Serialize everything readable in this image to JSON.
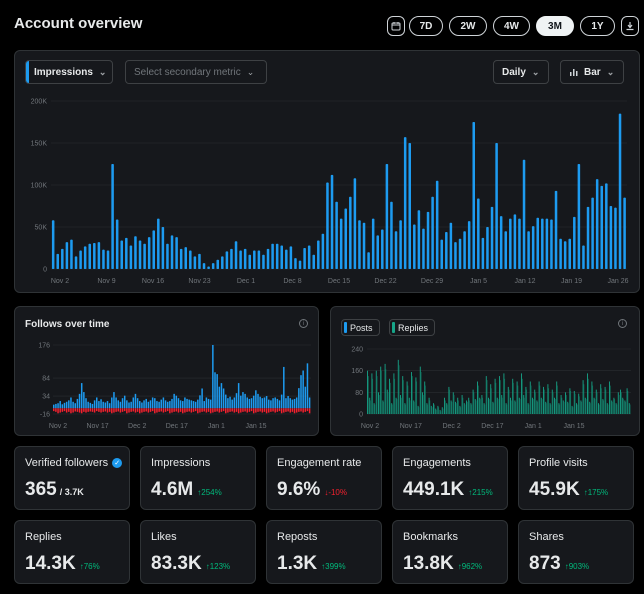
{
  "header": {
    "title": "Account overview",
    "ranges": [
      "7D",
      "2W",
      "4W",
      "3M",
      "1Y"
    ],
    "active_range": "3M"
  },
  "main_chart": {
    "primary_metric": "Impressions",
    "secondary_placeholder": "Select secondary metric",
    "interval": "Daily",
    "chart_type": "Bar",
    "icons": [
      "calendar-icon",
      "download-icon",
      "bar-chart-icon",
      "chevron-down-icon"
    ]
  },
  "followers_chart": {
    "title": "Follows over time"
  },
  "posts_chart": {
    "legend": [
      "Posts",
      "Replies"
    ]
  },
  "colors": {
    "blue": "#1d9bf0",
    "green": "#00ba7c",
    "red": "#f4212e",
    "teal": "#17a589"
  },
  "cards": [
    {
      "label": "Verified followers",
      "value": "365",
      "sub": "/ 3.7K",
      "change": "",
      "dir": "",
      "verified": true
    },
    {
      "label": "Impressions",
      "value": "4.6M",
      "change": "↑254%",
      "dir": "up"
    },
    {
      "label": "Engagement rate",
      "value": "9.6%",
      "change": "↓-10%",
      "dir": "down"
    },
    {
      "label": "Engagements",
      "value": "449.1K",
      "change": "↑215%",
      "dir": "up"
    },
    {
      "label": "Profile visits",
      "value": "45.9K",
      "change": "↑175%",
      "dir": "up"
    },
    {
      "label": "Replies",
      "value": "14.3K",
      "change": "↑76%",
      "dir": "up"
    },
    {
      "label": "Likes",
      "value": "83.3K",
      "change": "↑123%",
      "dir": "up"
    },
    {
      "label": "Reposts",
      "value": "1.3K",
      "change": "↑399%",
      "dir": "up"
    },
    {
      "label": "Bookmarks",
      "value": "13.8K",
      "change": "↑962%",
      "dir": "up"
    },
    {
      "label": "Shares",
      "value": "873",
      "change": "↑903%",
      "dir": "up"
    }
  ],
  "chart_data": [
    {
      "type": "bar",
      "title": "",
      "series": [
        {
          "name": "Impressions",
          "values": [
            58,
            18,
            24,
            32,
            35,
            15,
            22,
            27,
            30,
            31,
            32,
            23,
            22,
            125,
            59,
            34,
            37,
            28,
            39,
            34,
            30,
            38,
            46,
            60,
            50,
            30,
            40,
            38,
            24,
            26,
            22,
            15,
            18,
            7,
            3,
            7,
            11,
            15,
            21,
            24,
            33,
            22,
            24,
            17,
            22,
            22,
            17,
            24,
            30,
            30,
            28,
            23,
            27,
            13,
            10,
            25,
            28,
            17,
            34,
            42,
            103,
            112,
            80,
            60,
            72,
            86,
            108,
            58,
            55,
            20,
            60,
            40,
            47,
            125,
            80,
            45,
            58,
            157,
            150,
            53,
            70,
            48,
            68,
            86,
            105,
            35,
            44,
            55,
            32,
            36,
            45,
            57,
            175,
            84,
            37,
            50,
            74,
            150,
            63,
            45,
            60,
            65,
            60,
            130,
            45,
            51,
            61,
            60,
            60,
            59,
            93,
            36,
            33,
            36,
            62,
            125,
            28,
            74,
            85,
            107,
            99,
            102,
            75,
            73,
            185,
            85
          ]
        }
      ],
      "x_tick_labels": [
        "Nov 2",
        "Nov 9",
        "Nov 16",
        "Nov 23",
        "Dec 1",
        "Dec 8",
        "Dec 15",
        "Dec 22",
        "Dec 29",
        "Jan 5",
        "Jan 12",
        "Jan 19",
        "Jan 26"
      ],
      "y_tick_labels": [
        "0",
        "50K",
        "100K",
        "150K",
        "200K"
      ],
      "ylim": [
        0,
        200
      ],
      "grid": true
    },
    {
      "type": "bar",
      "title": "Follows over time",
      "series": [
        {
          "name": "follows",
          "values": [
            10,
            12,
            14,
            20,
            11,
            15,
            18,
            22,
            30,
            18,
            14,
            26,
            40,
            70,
            45,
            28,
            18,
            15,
            12,
            22,
            30,
            20,
            25,
            18,
            16,
            20,
            14,
            30,
            45,
            30,
            22,
            18,
            28,
            35,
            22,
            16,
            18,
            30,
            40,
            28,
            20,
            16,
            22,
            26,
            18,
            22,
            30,
            28,
            20,
            18,
            24,
            30,
            22,
            18,
            20,
            26,
            40,
            35,
            28,
            22,
            20,
            30,
            26,
            24,
            22,
            20,
            18,
            24,
            36,
            55,
            20,
            30,
            26,
            24,
            176,
            100,
            95,
            60,
            70,
            55,
            38,
            28,
            32,
            24,
            30,
            42,
            70,
            35,
            45,
            40,
            30,
            26,
            28,
            35,
            50,
            40,
            32,
            28,
            30,
            34,
            24,
            22,
            28,
            30,
            26,
            22,
            38,
            115,
            28,
            34,
            28,
            24,
            26,
            30,
            56,
            92,
            105,
            60,
            125,
            30
          ]
        },
        {
          "name": "unfollows",
          "values": [
            -8,
            -10,
            -14,
            -12,
            -10,
            -8,
            -12,
            -10,
            -14,
            -12,
            -9,
            -10,
            -12,
            -14,
            -10,
            -12,
            -10,
            -9,
            -10,
            -12,
            -8,
            -10,
            -12,
            -10,
            -9,
            -12,
            -10,
            -14,
            -12,
            -10,
            -9,
            -12,
            -10,
            -8,
            -14,
            -12,
            -10,
            -9,
            -12,
            -10,
            -14,
            -12,
            -10,
            -9,
            -12,
            -10,
            -8,
            -14,
            -12,
            -10,
            -9,
            -12,
            -10,
            -8,
            -14,
            -12,
            -10,
            -9,
            -12,
            -10,
            -14,
            -12,
            -10,
            -9,
            -12,
            -10,
            -8,
            -14,
            -12,
            -10,
            -9,
            -12,
            -10,
            -14,
            -12,
            -10,
            -9,
            -12,
            -10,
            -8,
            -14,
            -12,
            -10,
            -9,
            -12,
            -10,
            -14,
            -12,
            -10,
            -9,
            -12,
            -10,
            -8,
            -14,
            -12,
            -10,
            -9,
            -12,
            -10,
            -14,
            -12,
            -10,
            -9,
            -12,
            -10,
            -8,
            -14,
            -12,
            -10,
            -9,
            -12,
            -10,
            -14,
            -12,
            -10,
            -9,
            -12,
            -10,
            -8,
            -14
          ]
        }
      ],
      "x_tick_labels": [
        "Nov 2",
        "Nov 17",
        "Dec 2",
        "Dec 17",
        "Jan 1",
        "Jan 15"
      ],
      "y_tick_labels": [
        "-16",
        "34",
        "84",
        "176"
      ],
      "ylim": [
        -16,
        176
      ]
    },
    {
      "type": "bar",
      "title": "",
      "series": [
        {
          "name": "Posts",
          "values": [
            160,
            60,
            150,
            40,
            160,
            80,
            175,
            50,
            185,
            90,
            130,
            40,
            150,
            60,
            200,
            70,
            140,
            40,
            120,
            60,
            155,
            50,
            135,
            30,
            175,
            80,
            120,
            40,
            60,
            30,
            40,
            20,
            30,
            15,
            25,
            60,
            40,
            100,
            50,
            80,
            45,
            60,
            30,
            70,
            40,
            50,
            60,
            40,
            90,
            55,
            120,
            60,
            70,
            40,
            140,
            60,
            110,
            45,
            130,
            60,
            140,
            70,
            150,
            40,
            100,
            60,
            130,
            50,
            120,
            60,
            150,
            70,
            100,
            40,
            120,
            60,
            90,
            50,
            120,
            60,
            100,
            45,
            110,
            40,
            90,
            60,
            120,
            40,
            70,
            50,
            80,
            45,
            95,
            30,
            85,
            40,
            75,
            50,
            125,
            60,
            150,
            45,
            120,
            60,
            90,
            40,
            110,
            55,
            100,
            40,
            120,
            50,
            60,
            40,
            80,
            90,
            60,
            50,
            95,
            40
          ]
        },
        {
          "name": "Replies",
          "values": [
            140,
            50,
            130,
            35,
            140,
            70,
            160,
            45,
            165,
            80,
            115,
            35,
            130,
            55,
            180,
            60,
            125,
            35,
            105,
            50,
            140,
            45,
            120,
            25,
            155,
            70,
            105,
            35,
            50,
            25,
            35,
            15,
            25,
            10,
            20,
            50,
            35,
            90,
            45,
            70,
            40,
            50,
            25,
            60,
            35,
            45,
            50,
            35,
            80,
            50,
            105,
            55,
            60,
            35,
            125,
            55,
            95,
            40,
            115,
            55,
            125,
            60,
            130,
            35,
            90,
            50,
            115,
            45,
            105,
            55,
            130,
            60,
            90,
            35,
            105,
            55,
            80,
            45,
            105,
            55,
            90,
            40,
            95,
            35,
            80,
            55,
            105,
            35,
            60,
            45,
            70,
            40,
            85,
            25,
            75,
            35,
            65,
            45,
            110,
            55,
            130,
            40,
            105,
            55,
            80,
            35,
            95,
            50,
            90,
            35,
            105,
            45,
            55,
            35,
            70,
            80,
            55,
            45,
            85,
            35
          ]
        }
      ],
      "x_tick_labels": [
        "Nov 2",
        "Nov 17",
        "Dec 2",
        "Dec 17",
        "Jan 1",
        "Jan 15"
      ],
      "y_tick_labels": [
        "0",
        "80",
        "160",
        "240"
      ],
      "ylim": [
        0,
        240
      ]
    }
  ]
}
